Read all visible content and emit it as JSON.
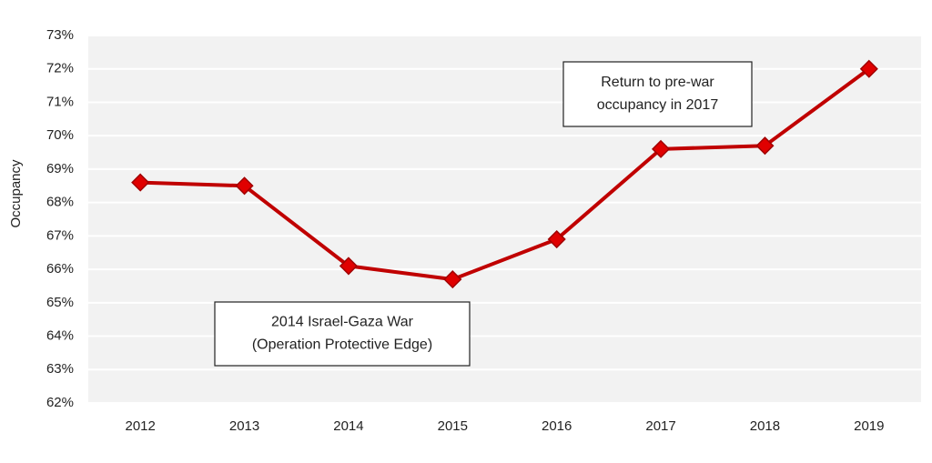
{
  "chart_data": {
    "type": "line",
    "y_label": "Occupancy",
    "categories": [
      "2012",
      "2013",
      "2014",
      "2015",
      "2016",
      "2017",
      "2018",
      "2019"
    ],
    "values": [
      68.6,
      68.5,
      66.1,
      65.7,
      66.9,
      69.6,
      69.7,
      72.0
    ],
    "color": "#c00000",
    "ylim": [
      62,
      73
    ],
    "yticks": [
      {
        "value": 62,
        "label": "62%"
      },
      {
        "value": 63,
        "label": "63%"
      },
      {
        "value": 64,
        "label": "64%"
      },
      {
        "value": 65,
        "label": "65%"
      },
      {
        "value": 66,
        "label": "66%"
      },
      {
        "value": 67,
        "label": "67%"
      },
      {
        "value": 68,
        "label": "68%"
      },
      {
        "value": 69,
        "label": "69%"
      },
      {
        "value": 70,
        "label": "70%"
      },
      {
        "value": 71,
        "label": "71%"
      },
      {
        "value": 72,
        "label": "72%"
      },
      {
        "value": 73,
        "label": "73%"
      }
    ],
    "grid": true,
    "annotations": [
      {
        "lines": [
          "2014 Israel-Gaza War",
          "(Operation Protective Edge)"
        ]
      },
      {
        "lines": [
          "Return to pre-war",
          "occupancy in 2017"
        ]
      }
    ]
  }
}
